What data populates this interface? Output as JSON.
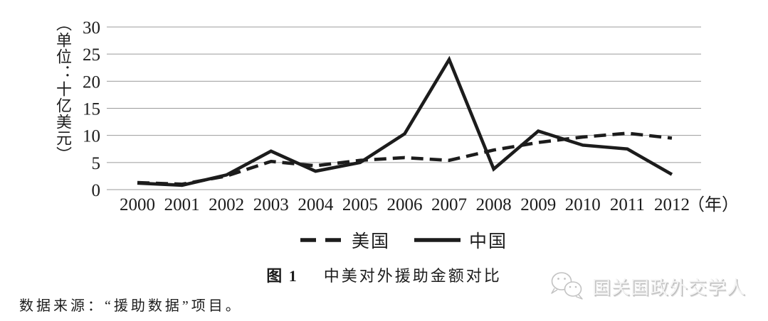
{
  "chart_data": {
    "type": "line",
    "title": "图1 中美对外援助金额对比",
    "x": [
      "2000",
      "2001",
      "2002",
      "2003",
      "2004",
      "2005",
      "2006",
      "2007",
      "2008",
      "2009",
      "2010",
      "2011",
      "2012"
    ],
    "x_axis_unit": "（年）",
    "y_axis_unit": "（单位：十亿美元）",
    "ylim": [
      0,
      30
    ],
    "yticks": [
      0,
      5,
      10,
      15,
      20,
      25,
      30
    ],
    "grid": true,
    "legend_position": "bottom",
    "series": [
      {
        "name": "美国",
        "style": "dashed",
        "color": "#1c1c1c",
        "values": [
          1.3,
          1.0,
          2.5,
          5.2,
          4.4,
          5.4,
          5.9,
          5.4,
          7.3,
          8.7,
          9.7,
          10.4,
          9.5
        ]
      },
      {
        "name": "中国",
        "style": "solid",
        "color": "#1c1c1c",
        "values": [
          1.2,
          0.8,
          2.7,
          7.1,
          3.4,
          5.0,
          10.3,
          24.0,
          3.8,
          10.8,
          8.2,
          7.5,
          2.8
        ]
      }
    ]
  },
  "legend": {
    "us_label": "美国",
    "china_label": "中国"
  },
  "caption": {
    "figure_label": "图 1",
    "title": "中美对外援助金额对比"
  },
  "source": {
    "text": "数据来源：“援助数据”项目。"
  },
  "watermark": {
    "icon": "wechat-icon",
    "text": "国关国政外交学人"
  },
  "colors": {
    "line": "#1c1c1c",
    "grid": "#9b9b9b",
    "watermark": "#c2c2c2"
  }
}
